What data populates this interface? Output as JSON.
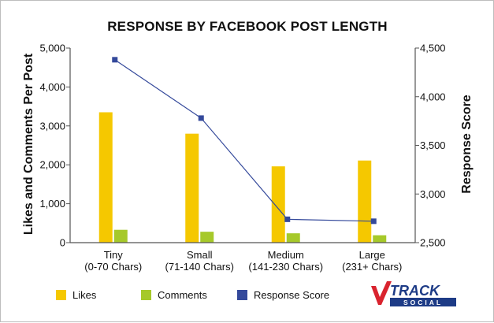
{
  "chart_data": {
    "type": "bar",
    "title": "RESPONSE BY FACEBOOK POST LENGTH",
    "categories": [
      [
        "Tiny",
        "(0-70 Chars)"
      ],
      [
        "Small",
        "(71-140 Chars)"
      ],
      [
        "Medium",
        "(141-230 Chars)"
      ],
      [
        "Large",
        "(231+ Chars)"
      ]
    ],
    "y_left": {
      "label": "Likes and Comments Per Post",
      "ylim": [
        0,
        5000
      ],
      "ticks": [
        "0",
        "1,000",
        "2,000",
        "3,000",
        "4,000",
        "5,000"
      ],
      "tick_values": [
        0,
        1000,
        2000,
        3000,
        4000,
        5000
      ]
    },
    "y_right": {
      "label": "Response Score",
      "ylim": [
        2500,
        4500
      ],
      "ticks": [
        "2,500",
        "3,000",
        "3,500",
        "4,000",
        "4,500"
      ],
      "tick_values": [
        2500,
        3000,
        3500,
        4000,
        4500
      ]
    },
    "series": [
      {
        "name": "Likes",
        "type": "bar",
        "axis": "left",
        "color": "#f5c800",
        "values": [
          3350,
          2800,
          1960,
          2110
        ]
      },
      {
        "name": "Comments",
        "type": "bar",
        "axis": "left",
        "color": "#a6c92a",
        "values": [
          330,
          280,
          240,
          190
        ]
      },
      {
        "name": "Response Score",
        "type": "line",
        "axis": "right",
        "color": "#34499b",
        "values": [
          4380,
          3780,
          2740,
          2720
        ]
      }
    ],
    "grid": false,
    "legend": "bottom"
  },
  "logo": {
    "main": "TRACK",
    "sub": "SOCIAL",
    "brand_color": "#1d3b86",
    "accent_color": "#d9232e"
  }
}
